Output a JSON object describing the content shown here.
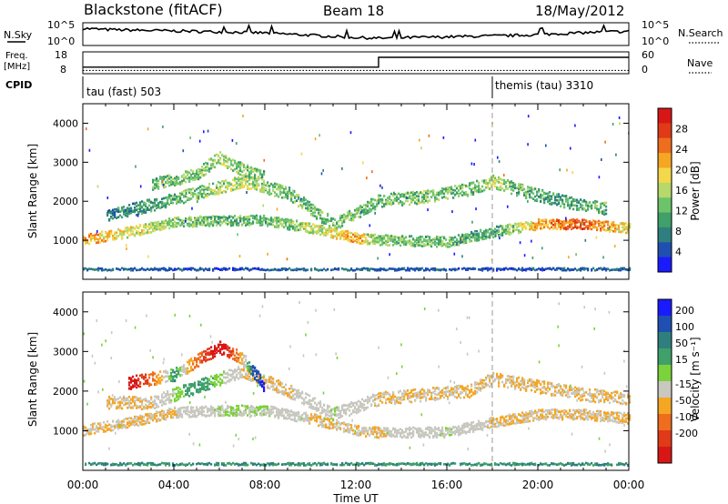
{
  "header": {
    "station": "Blackstone (fitACF)",
    "beam": "Beam 18",
    "date": "18/May/2012"
  },
  "chart_data": [
    {
      "type": "line",
      "panel": "sky-noise",
      "series_label": "N.Sky",
      "right_label": "N.Search",
      "ytick_labels_left": [
        "10^5",
        "10^0"
      ],
      "ytick_labels_right": [
        "10^5",
        "10^0"
      ],
      "x_hours": [
        0,
        1,
        2,
        3,
        4,
        5,
        6,
        7,
        8,
        9,
        10,
        11,
        12,
        13,
        14,
        15,
        16,
        17,
        18,
        19,
        20,
        21,
        22,
        23,
        24
      ],
      "sky_level": [
        0.75,
        0.7,
        0.68,
        0.66,
        0.64,
        0.62,
        0.6,
        0.58,
        0.55,
        0.5,
        0.45,
        0.4,
        0.35,
        0.32,
        0.34,
        0.36,
        0.38,
        0.4,
        0.42,
        0.44,
        0.48,
        0.52,
        0.56,
        0.6,
        0.62
      ]
    },
    {
      "type": "line",
      "panel": "frequency",
      "left_label": "Freq.",
      "left_unit": "[MHz]",
      "right_label": "Nave",
      "ytick_labels_left": [
        "18",
        "8"
      ],
      "ytick_labels_right": [
        "60",
        "0"
      ],
      "x_hours": [
        0,
        13,
        13,
        24
      ],
      "freq_mhz": [
        11.0,
        11.0,
        15.5,
        15.5
      ],
      "nave_points": [
        0,
        24
      ],
      "nave_value": [
        9,
        9
      ]
    },
    {
      "type": "table",
      "panel": "cpid",
      "label": "CPID",
      "segments": [
        {
          "start_hour": 0,
          "label": "tau (fast) 503"
        },
        {
          "start_hour": 18,
          "label": "themis (tau) 3310"
        }
      ]
    },
    {
      "type": "heatmap",
      "panel": "power",
      "ylabel": "Slant Range [km]",
      "yticks": [
        1000,
        2000,
        3000,
        4000
      ],
      "ylim": [
        0,
        4500
      ],
      "colorbar_label": "Power [dB]",
      "colorbar_ticks": [
        4,
        8,
        12,
        16,
        20,
        24,
        28
      ],
      "colorbar_range": [
        0,
        32
      ],
      "colors": [
        "#1a1aff",
        "#1f4fb0",
        "#2f7f7f",
        "#3fa06a",
        "#6cc36a",
        "#b7d86b",
        "#f2d84a",
        "#f5a623",
        "#ee6d1f",
        "#e03a19",
        "#d81616"
      ],
      "bands": [
        {
          "name": "low",
          "points": [
            [
              0,
              1000,
              22
            ],
            [
              2,
              1200,
              18
            ],
            [
              4,
              1450,
              14
            ],
            [
              6,
              1500,
              12
            ],
            [
              8,
              1500,
              12
            ],
            [
              10,
              1300,
              16
            ],
            [
              12,
              1050,
              22
            ],
            [
              13,
              1000,
              14
            ],
            [
              16,
              950,
              12
            ],
            [
              18,
              1200,
              10
            ],
            [
              20,
              1400,
              22
            ],
            [
              22,
              1400,
              26
            ],
            [
              24,
              1300,
              18
            ]
          ]
        },
        {
          "name": "mid",
          "points": [
            [
              1,
              1600,
              8
            ],
            [
              3,
              1900,
              10
            ],
            [
              5,
              2200,
              14
            ],
            [
              7,
              2500,
              16
            ],
            [
              9,
              2200,
              12
            ],
            [
              11,
              1400,
              14
            ],
            [
              13,
              2000,
              12
            ],
            [
              15,
              2100,
              14
            ],
            [
              17,
              2300,
              12
            ],
            [
              18,
              2500,
              16
            ],
            [
              19,
              2300,
              12
            ],
            [
              21,
              2000,
              10
            ],
            [
              23,
              1800,
              12
            ]
          ]
        },
        {
          "name": "upper",
          "points": [
            [
              3,
              2400,
              12
            ],
            [
              5,
              2700,
              14
            ],
            [
              6,
              3100,
              16
            ],
            [
              7,
              2800,
              14
            ],
            [
              8,
              2600,
              12
            ]
          ]
        },
        {
          "name": "near",
          "points": [
            [
              0,
              250,
              6
            ],
            [
              6,
              250,
              4
            ],
            [
              12,
              250,
              6
            ],
            [
              18,
              250,
              4
            ],
            [
              24,
              250,
              6
            ]
          ]
        }
      ]
    },
    {
      "type": "heatmap",
      "panel": "velocity",
      "ylabel": "Slant Range [km]",
      "yticks": [
        1000,
        2000,
        3000,
        4000
      ],
      "ylim": [
        0,
        4500
      ],
      "colorbar_label": "Velocity [m s⁻¹]",
      "colorbar_ticks": [
        200,
        100,
        50,
        15,
        -15,
        -50,
        -100,
        -200
      ],
      "colors": [
        "#1a1aff",
        "#1f4fb0",
        "#2f7f7f",
        "#3fa06a",
        "#7bd23a",
        "#c8c8c0",
        "#f5a623",
        "#ee6d1f",
        "#e03a19",
        "#d81616"
      ],
      "bands": [
        {
          "name": "low",
          "points": [
            [
              0,
              1000,
              -15
            ],
            [
              2,
              1200,
              -15
            ],
            [
              4,
              1450,
              -15
            ],
            [
              6,
              1500,
              15
            ],
            [
              8,
              1500,
              15
            ],
            [
              10,
              1300,
              -15
            ],
            [
              12,
              1000,
              -15
            ],
            [
              13,
              950,
              -15
            ],
            [
              16,
              950,
              15
            ],
            [
              18,
              1200,
              -15
            ],
            [
              20,
              1400,
              -15
            ],
            [
              22,
              1400,
              -15
            ],
            [
              24,
              1300,
              -15
            ]
          ]
        },
        {
          "name": "mid",
          "points": [
            [
              1,
              1700,
              -15
            ],
            [
              3,
              1700,
              -15
            ],
            [
              5,
              2100,
              50
            ],
            [
              7,
              2500,
              -15
            ],
            [
              9,
              2000,
              -15
            ],
            [
              11,
              1400,
              15
            ],
            [
              13,
              1800,
              -15
            ],
            [
              15,
              1900,
              -15
            ],
            [
              17,
              2000,
              -15
            ],
            [
              18,
              2300,
              -15
            ],
            [
              20,
              2100,
              -15
            ],
            [
              22,
              1900,
              -15
            ],
            [
              24,
              1800,
              -15
            ]
          ]
        },
        {
          "name": "upper",
          "points": [
            [
              2,
              2200,
              -200
            ],
            [
              4,
              2400,
              50
            ],
            [
              6,
              3100,
              -200
            ],
            [
              7,
              2800,
              -15
            ],
            [
              8,
              2100,
              200
            ]
          ]
        },
        {
          "name": "near",
          "points": [
            [
              0,
              150,
              50
            ],
            [
              6,
              150,
              50
            ],
            [
              12,
              150,
              50
            ],
            [
              18,
              150,
              50
            ],
            [
              24,
              150,
              50
            ]
          ]
        }
      ]
    }
  ],
  "x_axis": {
    "label": "Time UT",
    "ticks": [
      "00:00",
      "04:00",
      "08:00",
      "12:00",
      "16:00",
      "20:00",
      "00:00"
    ],
    "xlim_hours": [
      0,
      24
    ]
  }
}
